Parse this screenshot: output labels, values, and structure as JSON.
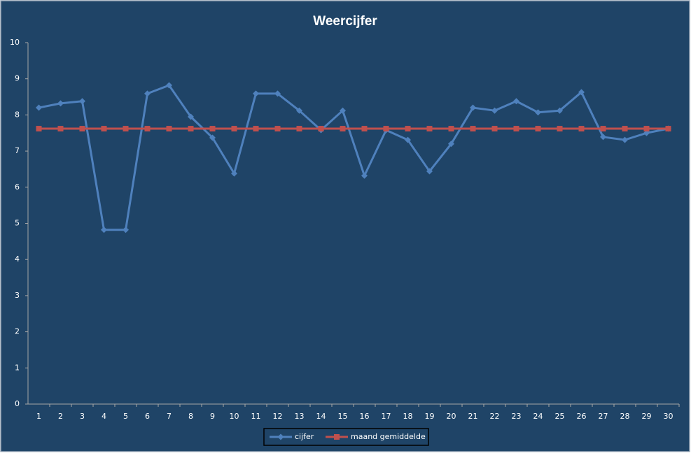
{
  "chart_data": {
    "type": "line",
    "title": "Weercijfer",
    "categories": [
      "1",
      "2",
      "3",
      "4",
      "5",
      "6",
      "7",
      "8",
      "9",
      "10",
      "11",
      "12",
      "13",
      "14",
      "15",
      "16",
      "17",
      "18",
      "19",
      "20",
      "21",
      "22",
      "23",
      "24",
      "25",
      "26",
      "27",
      "28",
      "29",
      "30"
    ],
    "series": [
      {
        "name": "cijfer",
        "color": "#4f81bd",
        "marker": "diamond",
        "values": [
          8.2,
          8.32,
          8.38,
          4.82,
          4.82,
          8.59,
          8.82,
          7.95,
          7.37,
          6.38,
          8.59,
          8.59,
          8.12,
          7.58,
          8.12,
          6.32,
          7.58,
          7.31,
          6.44,
          7.2,
          8.2,
          8.12,
          8.38,
          8.07,
          8.12,
          8.63,
          7.39,
          7.31,
          7.5,
          7.62
        ]
      },
      {
        "name": "maand gemiddelde",
        "color": "#c0504d",
        "marker": "square",
        "values": [
          7.62,
          7.62,
          7.62,
          7.62,
          7.62,
          7.62,
          7.62,
          7.62,
          7.62,
          7.62,
          7.62,
          7.62,
          7.62,
          7.62,
          7.62,
          7.62,
          7.62,
          7.62,
          7.62,
          7.62,
          7.62,
          7.62,
          7.62,
          7.62,
          7.62,
          7.62,
          7.62,
          7.62,
          7.62,
          7.62
        ]
      }
    ],
    "ylim": [
      0,
      10
    ],
    "yticks": [
      0,
      1,
      2,
      3,
      4,
      5,
      6,
      7,
      8,
      9,
      10
    ],
    "grid": false,
    "legend": "bottom"
  }
}
